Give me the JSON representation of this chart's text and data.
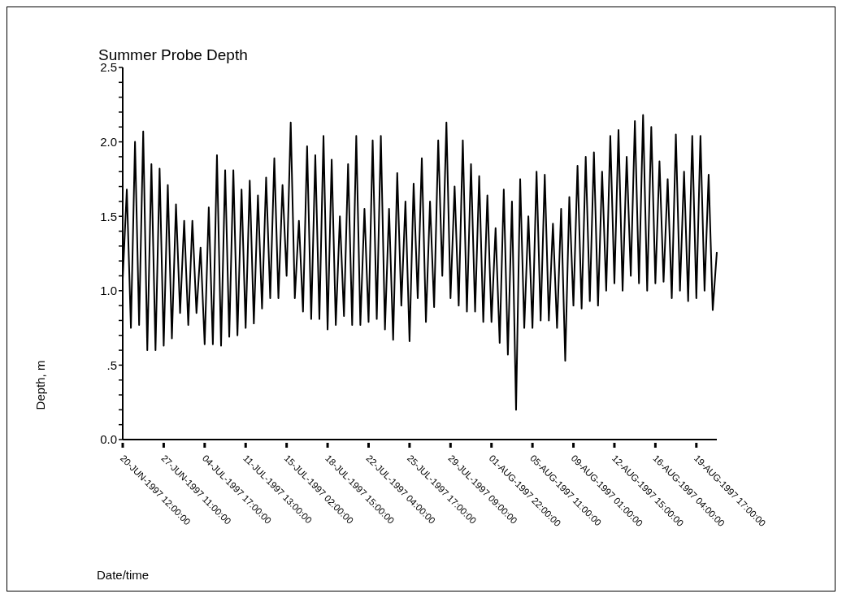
{
  "chart_data": {
    "type": "line",
    "title": "Summer Probe Depth",
    "xlabel": "Date/time",
    "ylabel": "Depth, m",
    "categories": [
      "20-JUN-1997 12:00:00",
      null,
      null,
      null,
      null,
      null,
      null,
      null,
      null,
      null,
      "27-JUN-1997 11:00:00",
      null,
      null,
      null,
      null,
      null,
      null,
      null,
      null,
      null,
      "04-JUL-1997 17:00:00",
      null,
      null,
      null,
      null,
      null,
      null,
      null,
      null,
      null,
      "11-JUL-1997 13:00:00",
      null,
      null,
      null,
      null,
      null,
      null,
      null,
      null,
      null,
      "15-JUL-1997 02:00:00",
      null,
      null,
      null,
      null,
      null,
      null,
      null,
      null,
      null,
      "18-JUL-1997 15:00:00",
      null,
      null,
      null,
      null,
      null,
      null,
      null,
      null,
      null,
      "22-JUL-1997 04:00:00",
      null,
      null,
      null,
      null,
      null,
      null,
      null,
      null,
      null,
      "25-JUL-1997 17:00:00",
      null,
      null,
      null,
      null,
      null,
      null,
      null,
      null,
      null,
      "29-JUL-1997 09:00:00",
      null,
      null,
      null,
      null,
      null,
      null,
      null,
      null,
      null,
      "01-AUG-1997 22:00:00",
      null,
      null,
      null,
      null,
      null,
      null,
      null,
      null,
      null,
      "05-AUG-1997 11:00:00",
      null,
      null,
      null,
      null,
      null,
      null,
      null,
      null,
      null,
      "09-AUG-1997 01:00:00",
      null,
      null,
      null,
      null,
      null,
      null,
      null,
      null,
      null,
      "12-AUG-1997 15:00:00",
      null,
      null,
      null,
      null,
      null,
      null,
      null,
      null,
      null,
      "16-AUG-1997 04:00:00",
      null,
      null,
      null,
      null,
      null,
      null,
      null,
      null,
      null,
      "19-AUG-1997 17:00:00",
      null,
      null,
      null,
      null,
      null
    ],
    "values": [
      1.08,
      1.68,
      0.75,
      2.0,
      0.77,
      2.07,
      0.6,
      1.85,
      0.6,
      1.82,
      0.63,
      1.71,
      0.68,
      1.58,
      0.85,
      1.47,
      0.77,
      1.47,
      0.85,
      1.29,
      0.64,
      1.56,
      0.64,
      1.91,
      0.63,
      1.81,
      0.69,
      1.81,
      0.7,
      1.68,
      0.75,
      1.74,
      0.78,
      1.64,
      0.88,
      1.76,
      0.95,
      1.89,
      0.95,
      1.71,
      1.1,
      2.13,
      0.95,
      1.47,
      0.86,
      1.97,
      0.81,
      1.91,
      0.81,
      2.04,
      0.74,
      1.88,
      0.77,
      1.5,
      0.83,
      1.85,
      0.77,
      2.04,
      0.77,
      1.55,
      0.79,
      2.01,
      0.81,
      2.04,
      0.74,
      1.55,
      0.67,
      1.79,
      0.9,
      1.6,
      0.66,
      1.72,
      0.95,
      1.89,
      0.79,
      1.6,
      0.89,
      2.01,
      1.1,
      2.13,
      0.95,
      1.7,
      0.9,
      2.01,
      0.86,
      1.85,
      0.86,
      1.77,
      0.79,
      1.64,
      0.79,
      1.42,
      0.65,
      1.68,
      0.57,
      1.6,
      0.2,
      1.75,
      0.75,
      1.5,
      0.75,
      1.8,
      0.8,
      1.78,
      0.8,
      1.45,
      0.75,
      1.55,
      0.53,
      1.63,
      0.9,
      1.84,
      0.88,
      1.9,
      0.93,
      1.93,
      0.9,
      1.8,
      1.0,
      2.04,
      1.05,
      2.08,
      1.0,
      1.9,
      1.1,
      2.14,
      1.05,
      2.18,
      1.0,
      2.1,
      1.05,
      1.87,
      1.06,
      1.75,
      0.95,
      2.05,
      1.0,
      1.8,
      0.93,
      2.04,
      0.95,
      2.04,
      1.0,
      1.78,
      0.87,
      1.26
    ],
    "color": "#000000",
    "ylim": [
      0,
      2.5
    ],
    "yticks": [
      {
        "value": 0,
        "label": "0.0"
      },
      {
        "value": 0.1,
        "label": null
      },
      {
        "value": 0.2,
        "label": null
      },
      {
        "value": 0.3,
        "label": null
      },
      {
        "value": 0.4,
        "label": null
      },
      {
        "value": 0.5,
        "label": ".5"
      },
      {
        "value": 0.6,
        "label": null
      },
      {
        "value": 0.7,
        "label": null
      },
      {
        "value": 0.8,
        "label": null
      },
      {
        "value": 0.9,
        "label": null
      },
      {
        "value": 1.0,
        "label": "1.0"
      },
      {
        "value": 1.1,
        "label": null
      },
      {
        "value": 1.2,
        "label": null
      },
      {
        "value": 1.3,
        "label": null
      },
      {
        "value": 1.4,
        "label": null
      },
      {
        "value": 1.5,
        "label": "1.5"
      },
      {
        "value": 1.6,
        "label": null
      },
      {
        "value": 1.7,
        "label": null
      },
      {
        "value": 1.8,
        "label": null
      },
      {
        "value": 1.9,
        "label": null
      },
      {
        "value": 2.0,
        "label": "2.0"
      },
      {
        "value": 2.1,
        "label": null
      },
      {
        "value": 2.2,
        "label": null
      },
      {
        "value": 2.3,
        "label": null
      },
      {
        "value": 2.4,
        "label": null
      },
      {
        "value": 2.5,
        "label": "2.5"
      }
    ]
  }
}
